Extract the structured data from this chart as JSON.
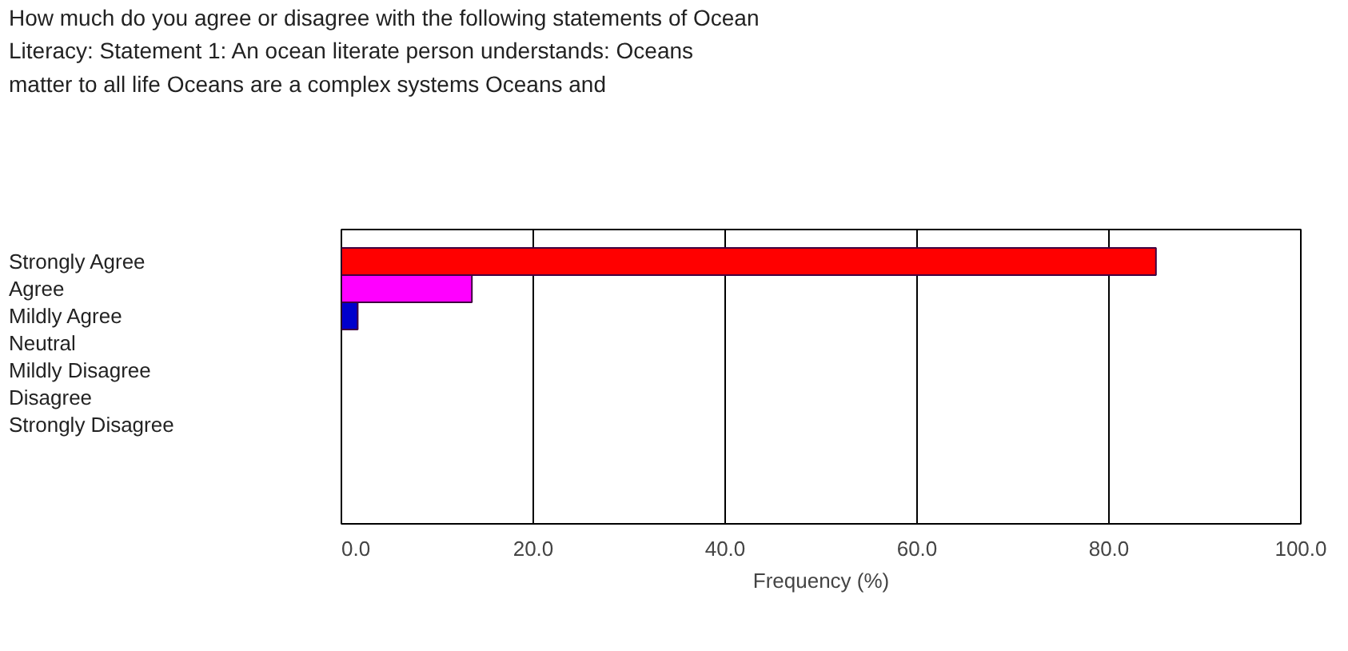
{
  "chart_data": {
    "type": "bar",
    "orientation": "horizontal",
    "title": "How much do you agree or disagree with the following statements of Ocean Literacy: Statement 1: An ocean literate person understands: Oceans matter to all life Oceans are a complex systems Oceans and",
    "categories": [
      "Strongly Agree",
      "Agree",
      "Mildly Agree",
      "Neutral",
      "Mildly Disagree",
      "Disagree",
      "Strongly Disagree"
    ],
    "values": [
      84.9,
      13.6,
      1.7,
      0,
      0,
      0,
      0
    ],
    "colors": [
      "#ff0000",
      "#ff00ff",
      "#0000cc",
      null,
      null,
      null,
      null
    ],
    "xlabel": "Frequency (%)",
    "xlim": [
      0,
      100
    ],
    "xticks": [
      {
        "value": 0,
        "label": "0.0"
      },
      {
        "value": 20,
        "label": "20.0"
      },
      {
        "value": 40,
        "label": "40.0"
      },
      {
        "value": 60,
        "label": "60.0"
      },
      {
        "value": 80,
        "label": "80.0"
      },
      {
        "value": 100,
        "label": "100.0"
      }
    ],
    "grid": "x"
  }
}
